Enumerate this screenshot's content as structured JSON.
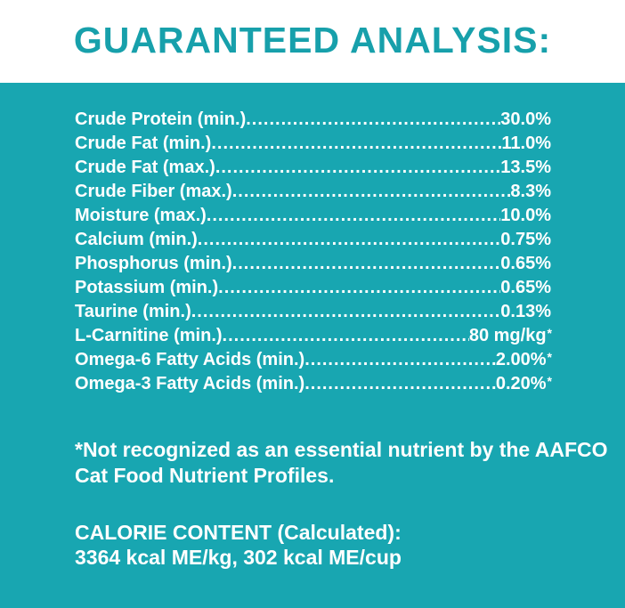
{
  "title": "GUARANTEED ANALYSIS:",
  "analysis": [
    {
      "label": "Crude Protein (min.)",
      "value": "30.0%",
      "note": ""
    },
    {
      "label": "Crude Fat (min.)",
      "value": "11.0%",
      "note": ""
    },
    {
      "label": "Crude Fat (max.)",
      "value": "13.5%",
      "note": ""
    },
    {
      "label": "Crude Fiber (max.)",
      "value": "8.3%",
      "note": ""
    },
    {
      "label": "Moisture (max.)",
      "value": "10.0%",
      "note": ""
    },
    {
      "label": "Calcium (min.)",
      "value": "0.75%",
      "note": ""
    },
    {
      "label": "Phosphorus (min.)",
      "value": "0.65%",
      "note": ""
    },
    {
      "label": "Potassium (min.)",
      "value": "0.65%",
      "note": ""
    },
    {
      "label": "Taurine (min.)",
      "value": "0.13%",
      "note": ""
    },
    {
      "label": "L-Carnitine (min.)",
      "value": "80 mg/kg",
      "note": "*"
    },
    {
      "label": "Omega-6 Fatty Acids (min.)",
      "value": "2.00%",
      "note": "*"
    },
    {
      "label": "Omega-3 Fatty Acids (min.)",
      "value": "0.20%",
      "note": "*"
    }
  ],
  "footnote": "*Not recognized as an essential nutrient by the AAFCO Cat Food Nutrient Profiles.",
  "calorie": {
    "heading": "CALORIE CONTENT (Calculated):",
    "value": "3364 kcal ME/kg, 302 kcal ME/cup"
  },
  "colors": {
    "accent": "#17a0ab",
    "panel": "#18a6b1",
    "text_on_panel": "#ffffff"
  }
}
